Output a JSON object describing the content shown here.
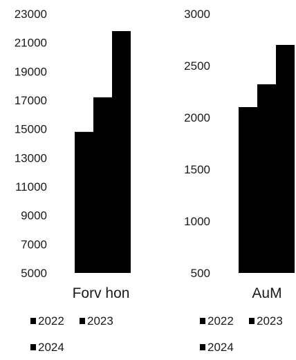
{
  "chart_data": [
    {
      "type": "bar",
      "xlabel": "Forv hon",
      "ylim": [
        5000,
        23000
      ],
      "y_ticks": [
        "23000",
        "21000",
        "19000",
        "17000",
        "15000",
        "13000",
        "11000",
        "9000",
        "7000",
        "5000"
      ],
      "categories": [
        "Forv hon"
      ],
      "series": [
        {
          "name": "2022",
          "values": [
            14800
          ]
        },
        {
          "name": "2023",
          "values": [
            17200
          ]
        },
        {
          "name": "2024",
          "values": [
            21800
          ]
        }
      ],
      "legend": [
        "2022",
        "2023",
        "2024"
      ],
      "legend_position": "bottom",
      "grid": false,
      "bar_color": "#000000"
    },
    {
      "type": "bar",
      "xlabel": "AuM",
      "ylim": [
        500,
        3000
      ],
      "y_ticks": [
        "3000",
        "2500",
        "2000",
        "1500",
        "1000",
        "500"
      ],
      "categories": [
        "AuM"
      ],
      "series": [
        {
          "name": "2022",
          "values": [
            2100
          ]
        },
        {
          "name": "2023",
          "values": [
            2320
          ]
        },
        {
          "name": "2024",
          "values": [
            2700
          ]
        }
      ],
      "legend": [
        "2022",
        "2023",
        "2024"
      ],
      "legend_position": "bottom",
      "grid": false,
      "bar_color": "#000000"
    }
  ]
}
